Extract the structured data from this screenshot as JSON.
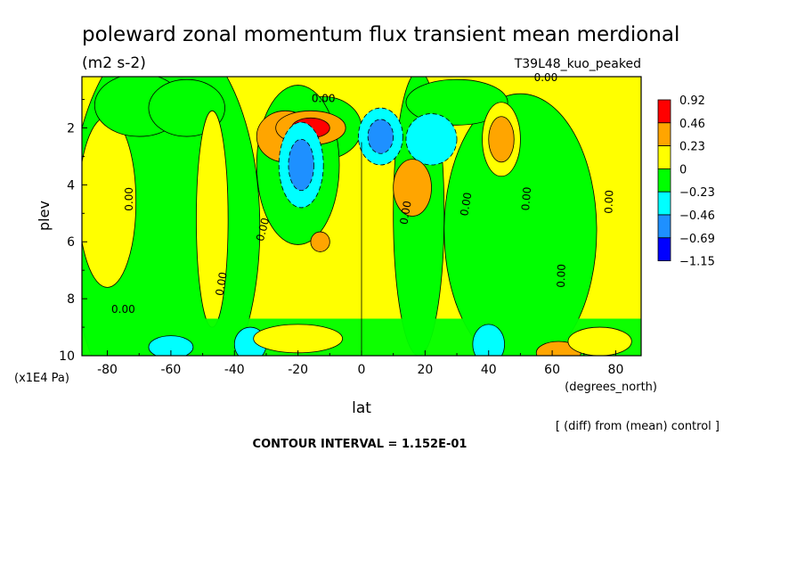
{
  "chart_data": {
    "type": "heatmap",
    "title": "poleward zonal momentum flux transient mean merdional",
    "units": "(m2 s-2)",
    "experiment": "T39L48_kuo_peaked",
    "xlabel": "lat",
    "xunits": "(degrees_north)",
    "ylabel": "plev",
    "yunits": "(x1E4 Pa)",
    "xlim": [
      -88,
      88
    ],
    "ylim": [
      10,
      0.2
    ],
    "x_ticks": [
      -80,
      -60,
      -40,
      -20,
      0,
      20,
      40,
      60,
      80
    ],
    "x_tick_labels": [
      "-80",
      "-60",
      "-40",
      "-20",
      "0",
      "20",
      "40",
      "60",
      "80"
    ],
    "y_ticks": [
      2,
      4,
      6,
      8,
      10
    ],
    "y_tick_labels": [
      "2",
      "4",
      "6",
      "8",
      "10"
    ],
    "contour_interval_text": "CONTOUR INTERVAL = 1.152E-01",
    "comparison_text": "[ (diff) from (mean) control ]",
    "contour_label": "0.00",
    "colorbar": {
      "levels": [
        "0.92",
        "0.46",
        "0.23",
        "0",
        "−0.23",
        "−0.46",
        "−0.69",
        "−1.15"
      ],
      "colors": [
        "#ff0000",
        "#ffa500",
        "#ffff00",
        "#00ff00",
        "#00ffff",
        "#1e90ff",
        "#0000ff"
      ]
    },
    "features": [
      {
        "lat": -16,
        "plev": 2.0,
        "value": 1.0
      },
      {
        "lat": -24,
        "plev": 2.3,
        "value": 0.35
      },
      {
        "lat": -19,
        "plev": 3.3,
        "value": -0.65
      },
      {
        "lat": 2,
        "plev": 2.2,
        "value": -0.55
      },
      {
        "lat": 10,
        "plev": 2.3,
        "value": -0.6
      },
      {
        "lat": 23,
        "plev": 2.5,
        "value": -0.4
      },
      {
        "lat": 16,
        "plev": 4.1,
        "value": 0.3
      },
      {
        "lat": 44,
        "plev": 2.4,
        "value": 0.45
      },
      {
        "lat": -13,
        "plev": 6.0,
        "value": 0.32
      },
      {
        "lat": -35,
        "plev": 9.6,
        "value": -0.35
      },
      {
        "lat": -60,
        "plev": 9.7,
        "value": -0.3
      },
      {
        "lat": 40,
        "plev": 9.6,
        "value": -0.3
      },
      {
        "lat": 62,
        "plev": 9.9,
        "value": 0.4
      }
    ]
  }
}
